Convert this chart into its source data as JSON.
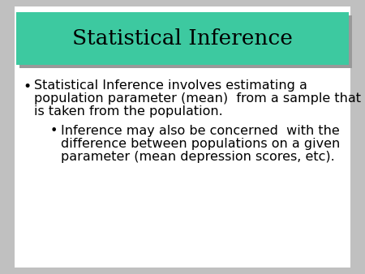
{
  "title": "Statistical Inference",
  "title_bg_color": "#3DC9A0",
  "title_shadow_color": "#999999",
  "outer_bg_color": "#C0C0C0",
  "slide_bg_color": "#FFFFFF",
  "title_font_size": 19,
  "title_text_color": "#000000",
  "body_text_color": "#000000",
  "bullet1_line1": "Statistical Inference involves estimating a",
  "bullet1_line2": "population parameter (mean)  from a sample that",
  "bullet1_line3": "is taken from the population.",
  "bullet2_line1": "Inference may also be concerned  with the",
  "bullet2_line2": "difference between populations on a given",
  "bullet2_line3": "parameter (mean depression scores, etc).",
  "body_font_size": 11.5
}
